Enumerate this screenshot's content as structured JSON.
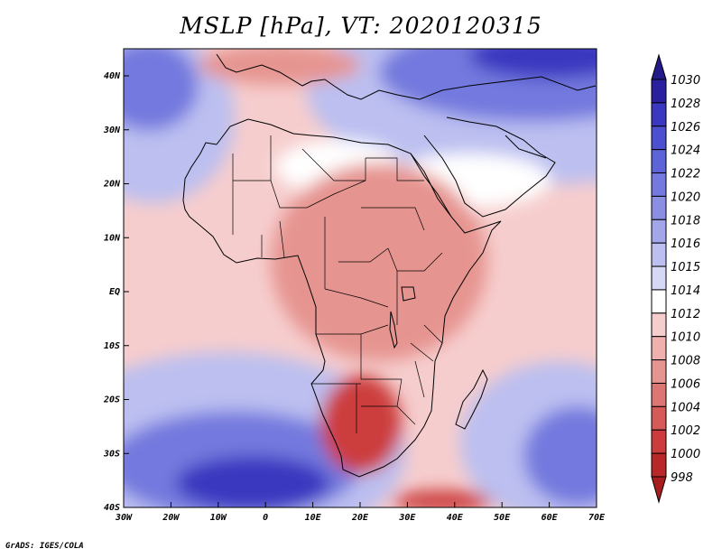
{
  "title": "MSLP [hPa], VT: 2020120315",
  "credit": "GrADS: IGES/COLA",
  "lon_ticks": [
    "30W",
    "20W",
    "10W",
    "0",
    "10E",
    "20E",
    "30E",
    "40E",
    "50E",
    "60E",
    "70E"
  ],
  "lat_ticks": [
    "40N",
    "30N",
    "20N",
    "10N",
    "EQ",
    "10S",
    "20S",
    "30S",
    "40S"
  ],
  "colorbar": {
    "labels": [
      "1030",
      "1028",
      "1026",
      "1024",
      "1022",
      "1020",
      "1018",
      "1016",
      "1015",
      "1014",
      "1012",
      "1010",
      "1008",
      "1006",
      "1004",
      "1002",
      "1000",
      "998"
    ],
    "colors": [
      "#2a1f9e",
      "#3a38c0",
      "#4b4fd0",
      "#5d64d8",
      "#7379de",
      "#8a8fe4",
      "#a3a7ea",
      "#bcbff0",
      "#d6d8f6",
      "#ffffff",
      "#f6cdcd",
      "#f0b0ae",
      "#e69490",
      "#dc7673",
      "#d55a58",
      "#cc3c3c",
      "#b82828"
    ],
    "top_arrow_color": "#241a8a",
    "bottom_arrow_color": "#a81e1e"
  },
  "field_colors": {
    "high_strong": "#3a38c0",
    "high_mid": "#7379de",
    "high_weak": "#bcbff0",
    "neutral": "#ffffff",
    "low_weak": "#f6cdcd",
    "low_mid": "#e69490",
    "low_strong": "#cc3c3c"
  }
}
